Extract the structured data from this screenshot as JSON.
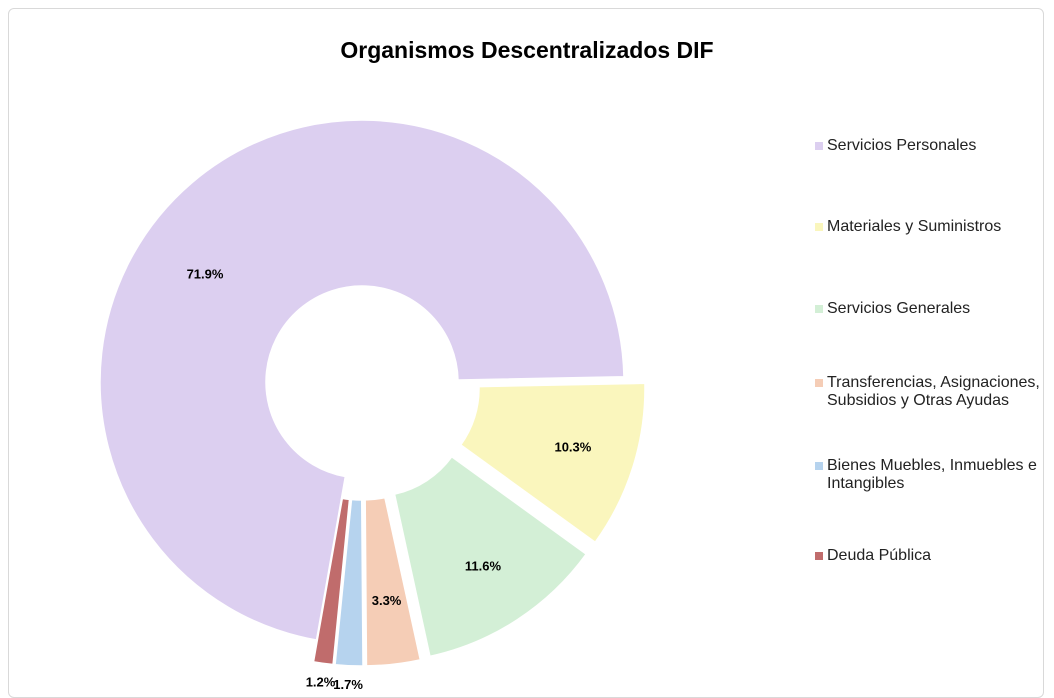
{
  "chart_data": {
    "type": "donut",
    "title": "Organismos Descentralizados DIF",
    "categories": [
      "Servicios Personales",
      "Materiales y Suministros",
      "Servicios Generales",
      "Transferencias, Asignaciones, Subsidios y Otras Ayudas",
      "Bienes Muebles, Inmuebles e Intangibles",
      "Deuda Pública"
    ],
    "values": [
      71.9,
      10.3,
      11.6,
      3.3,
      1.7,
      1.2
    ],
    "value_labels": [
      "71.9%",
      "10.3%",
      "11.6%",
      "3.3%",
      "1.7%",
      "1.2%"
    ],
    "colors": [
      "#dccff0",
      "#faf6bd",
      "#d3efd6",
      "#f5cdb6",
      "#b6d3ee",
      "#c06c6c"
    ],
    "legend": "right"
  }
}
